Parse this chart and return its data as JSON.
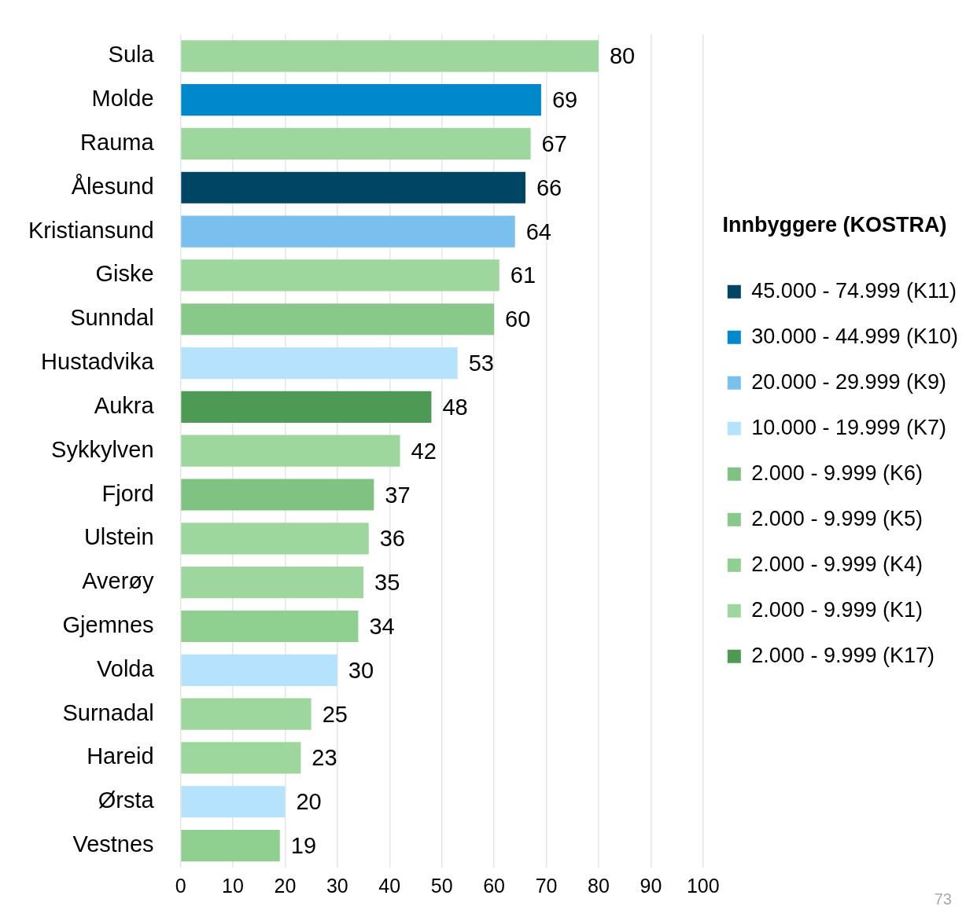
{
  "chart_data": {
    "type": "bar",
    "orientation": "horizontal",
    "legend": "right",
    "legend_title": "Innbyggere (KOSTRA)",
    "grid": "x",
    "data_labels": true,
    "categories": [
      "Sula",
      "Molde",
      "Rauma",
      "Ålesund",
      "Kristiansund",
      "Giske",
      "Sunndal",
      "Hustadvika",
      "Aukra",
      "Sykkylven",
      "Fjord",
      "Ulstein",
      "Averøy",
      "Gjemnes",
      "Volda",
      "Surnadal",
      "Hareid",
      "Ørsta",
      "Vestnes"
    ],
    "xlim": [
      0,
      100
    ],
    "xticks": [
      0,
      10,
      20,
      30,
      40,
      50,
      60,
      70,
      80,
      90,
      100
    ],
    "series": [
      {
        "name": "45.000 - 74.999 (K11)",
        "color": "#004564",
        "values": [
          null,
          null,
          null,
          66,
          null,
          null,
          null,
          null,
          null,
          null,
          null,
          null,
          null,
          null,
          null,
          null,
          null,
          null,
          null
        ]
      },
      {
        "name": "30.000 - 44.999 (K10)",
        "color": "#0088cc",
        "values": [
          null,
          69,
          null,
          null,
          null,
          null,
          null,
          null,
          null,
          null,
          null,
          null,
          null,
          null,
          null,
          null,
          null,
          null,
          null
        ]
      },
      {
        "name": "20.000 - 29.999 (K9)",
        "color": "#7ac0ef",
        "values": [
          null,
          null,
          null,
          null,
          64,
          null,
          null,
          null,
          null,
          null,
          null,
          null,
          null,
          null,
          null,
          null,
          null,
          null,
          null
        ]
      },
      {
        "name": "10.000 - 19.999 (K7)",
        "color": "#b5e2fc",
        "values": [
          null,
          null,
          null,
          null,
          null,
          null,
          null,
          53,
          null,
          null,
          null,
          null,
          null,
          null,
          30,
          null,
          null,
          20,
          null
        ]
      },
      {
        "name": "2.000 - 9.999 (K6)",
        "color": "#7fc281",
        "values": [
          null,
          null,
          null,
          null,
          null,
          null,
          null,
          null,
          null,
          null,
          37,
          null,
          null,
          null,
          null,
          null,
          null,
          null,
          null
        ]
      },
      {
        "name": "2.000 - 9.999 (K5)",
        "color": "#88c98a",
        "values": [
          null,
          null,
          null,
          null,
          null,
          null,
          60,
          null,
          null,
          null,
          null,
          null,
          null,
          null,
          null,
          null,
          null,
          null,
          null
        ]
      },
      {
        "name": "2.000 - 9.999 (K4)",
        "color": "#8fcf90",
        "values": [
          null,
          null,
          null,
          null,
          null,
          null,
          null,
          null,
          null,
          null,
          null,
          null,
          null,
          34,
          null,
          null,
          null,
          null,
          19
        ]
      },
      {
        "name": "2.000 - 9.999 (K1)",
        "color": "#9dd79e",
        "values": [
          80,
          null,
          67,
          null,
          null,
          61,
          null,
          null,
          null,
          42,
          null,
          36,
          35,
          null,
          null,
          25,
          23,
          null,
          null
        ]
      },
      {
        "name": "2.000 - 9.999 (K17)",
        "color": "#4d9a55",
        "values": [
          null,
          null,
          null,
          null,
          null,
          null,
          null,
          null,
          48,
          null,
          null,
          null,
          null,
          null,
          null,
          null,
          null,
          null,
          null
        ]
      }
    ],
    "annotations": [
      "73"
    ]
  }
}
